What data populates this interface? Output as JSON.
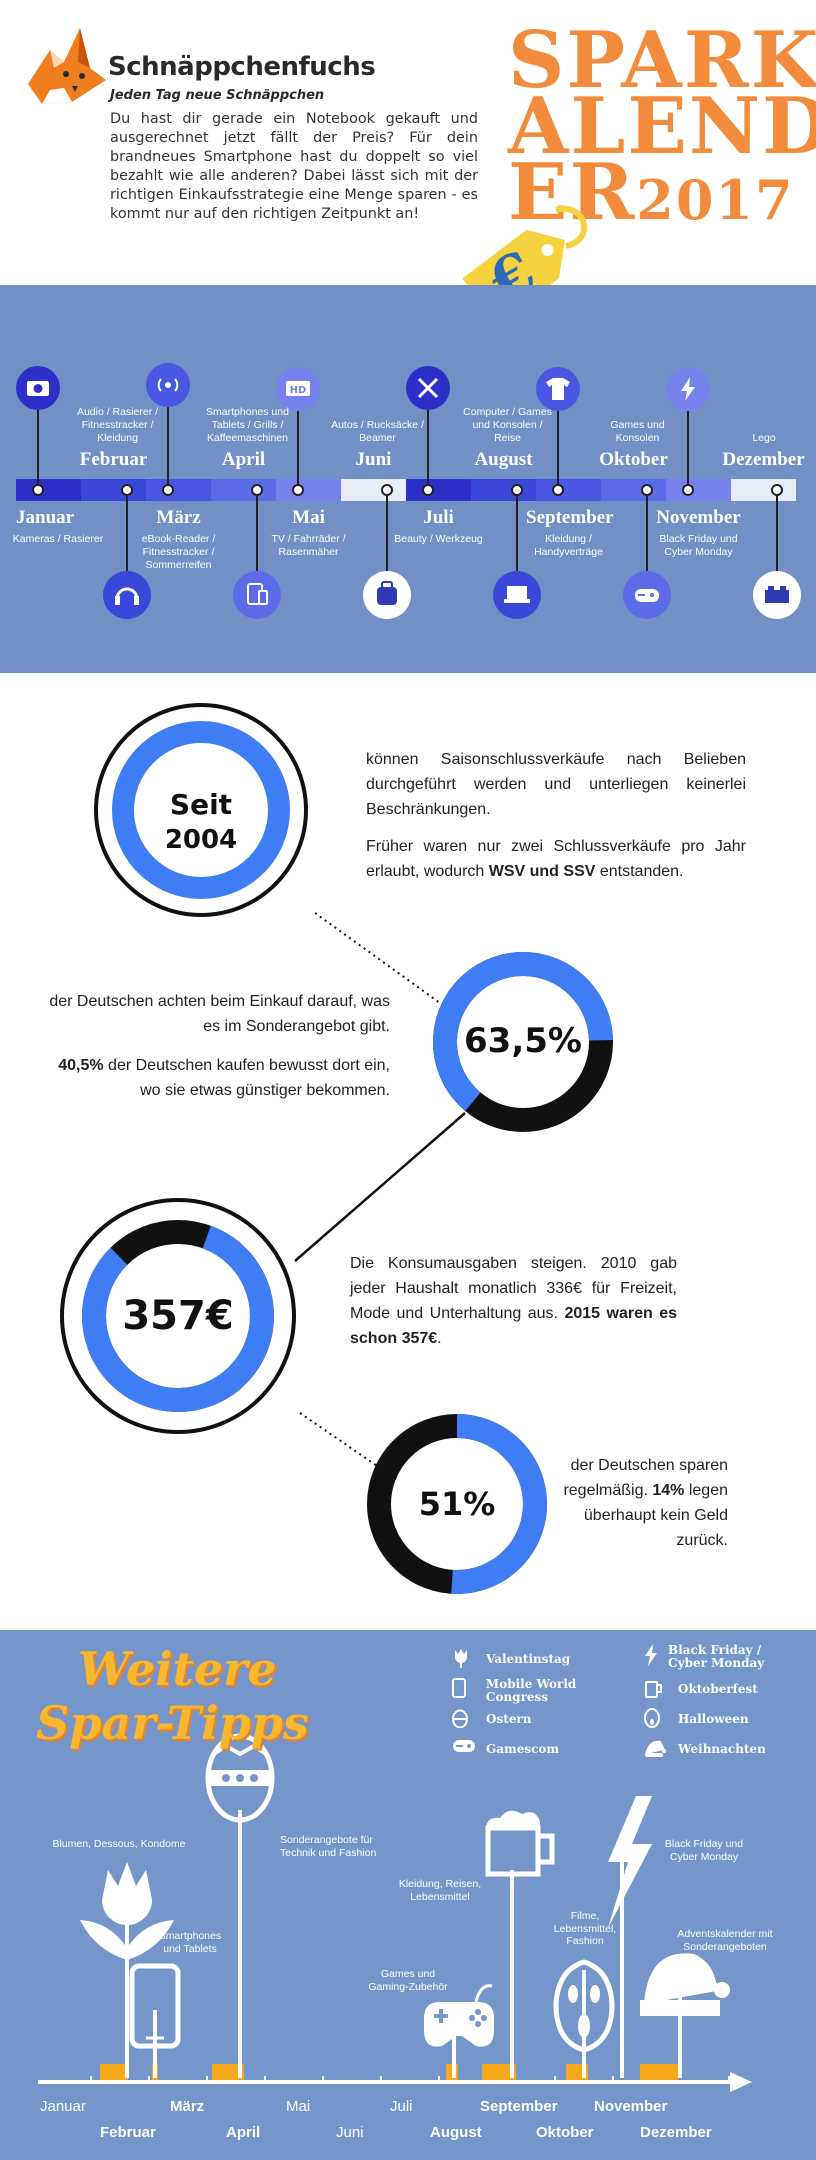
{
  "header": {
    "brand_name": "Schnäppchenfuchs",
    "slogan": "Jeden Tag neue Schnäppchen",
    "intro": "Du hast dir gerade ein Notebook gekauft und ausgerechnet jetzt fällt der Preis? Für dein brandneues Smartphone hast du doppelt so viel bezahlt wie alle anderen? Dabei lässt sich mit der richtigen Einkaufsstrategie eine Menge sparen - es kommt nur auf den richtigen Zeitpunkt an!",
    "title_lines": [
      "SPARK",
      "ALEND"
    ],
    "title_last": "ER",
    "year": "2017",
    "tag_symbol": "€",
    "colors": {
      "orange": "#f28c3c",
      "tag_yellow": "#f4d33e",
      "tag_dark": "#2e6ab4"
    }
  },
  "timeline": {
    "months": [
      {
        "name": "Januar",
        "category": "Kameras / Rasierer",
        "icon": "camera-icon",
        "color": "#2e2fc9"
      },
      {
        "name": "Februar",
        "category": "Audio / Rasierer / Fitnesstracker / Kleidung",
        "icon": "headset-icon",
        "color": "#3b47d8"
      },
      {
        "name": "März",
        "category": "eBook-Reader / Fitnesstracker / Sommerreifen",
        "icon": "wireless-icon",
        "color": "#4a57e2"
      },
      {
        "name": "April",
        "category": "Smartphones und Tablets / Grills / Kaffeemaschinen",
        "icon": "tablet-icon",
        "color": "#5d6be8"
      },
      {
        "name": "Mai",
        "category": "TV / Fahrräder / Rasenmäher",
        "icon": "hd-tv-icon",
        "color": "#7681ec"
      },
      {
        "name": "Juni",
        "category": "Autos / Rucksäcke / Beamer",
        "icon": "backpack-icon",
        "color": "#e6ecf8"
      },
      {
        "name": "Juli",
        "category": "Beauty / Werkzeug",
        "icon": "tools-icon",
        "color": "#2e2fc9"
      },
      {
        "name": "August",
        "category": "Computer / Games und Konsolen / Reise",
        "icon": "laptop-icon",
        "color": "#3b47d8"
      },
      {
        "name": "September",
        "category": "Kleidung / Handyverträge",
        "icon": "tshirt-icon",
        "color": "#4a57e2"
      },
      {
        "name": "Oktober",
        "category": "Games und Konsolen",
        "icon": "gamepad-icon",
        "color": "#5d6be8"
      },
      {
        "name": "November",
        "category": "Black Friday und Cyber Monday",
        "icon": "lightning-icon",
        "color": "#7681ec"
      },
      {
        "name": "Dezember",
        "category": "Lego",
        "icon": "lego-brick-icon",
        "color": "#e6ecf8"
      }
    ]
  },
  "stats": {
    "s1": {
      "label_top": "Seit",
      "label_bottom": "2004",
      "fraction": 1.0,
      "text": "können Saisonschlussverkäufe nach Belieben durchgeführt werden und unterliegen keinerlei Beschränkungen.",
      "text2_pre": "Früher waren nur zwei Schlussverkäufe pro Jahr erlaubt, wodurch ",
      "text2_bold": "WSV und SSV",
      "text2_post": " entstanden."
    },
    "s2": {
      "label": "63,5%",
      "fraction": 0.635,
      "text": "der Deutschen achten beim Einkauf darauf, was es im Sonderangebot gibt.",
      "text2_bold": "40,5%",
      "text2_post": " der Deutschen kaufen bewusst dort ein, wo sie etwas günstiger bekommen."
    },
    "s3": {
      "label": "357€",
      "fraction": 0.82,
      "text": "Die Konsumausgaben steigen. 2010 gab jeder Haushalt monatlich 336€ für Freizeit, Mode und Unterhaltung aus. ",
      "text_bold": "2015 waren es schon 357€",
      "text_post": "."
    },
    "s4": {
      "label": "51%",
      "fraction": 0.51,
      "text": "der Deutschen sparen regelmäßig. ",
      "text_bold": "14%",
      "text_post": " legen überhaupt kein Geld zurück."
    },
    "colors": {
      "blue": "#3f7df4",
      "black": "#111111"
    }
  },
  "tips": {
    "title_line1": "Weitere",
    "title_line2": "Spar-Tipps",
    "legend": [
      {
        "label": "Valentinstag",
        "icon": "tulip-icon"
      },
      {
        "label": "Mobile World Congress",
        "icon": "smartphone-icon"
      },
      {
        "label": "Ostern",
        "icon": "easter-egg-icon"
      },
      {
        "label": "Gamescom",
        "icon": "gamepad-icon"
      },
      {
        "label": "Black Friday / Cyber Monday",
        "icon": "lightning-icon"
      },
      {
        "label": "Oktoberfest",
        "icon": "beer-mug-icon"
      },
      {
        "label": "Halloween",
        "icon": "scream-mask-icon"
      },
      {
        "label": "Weihnachten",
        "icon": "santa-hat-icon"
      }
    ],
    "notes": {
      "valentin": "Blumen, Dessous, Kondome",
      "mwc": "Smartphones und Tablets",
      "ostern": "Sonderangebote für Technik und Fashion",
      "gamescom": "Games und Gaming-Zubehör",
      "oktoberfest": "Kleidung, Reisen, Lebensmittel",
      "halloween": "Filme, Lebensmittel, Fashion",
      "blackfriday": "Black Friday und Cyber Monday",
      "weihnachten": "Adventskalender mit Sonderangeboten"
    },
    "axis_months": [
      "Januar",
      "Februar",
      "März",
      "April",
      "Mai",
      "Juni",
      "Juli",
      "August",
      "September",
      "Oktober",
      "November",
      "Dezember"
    ],
    "colors": {
      "bar": "#f7a81b",
      "line": "#ffffff"
    }
  }
}
